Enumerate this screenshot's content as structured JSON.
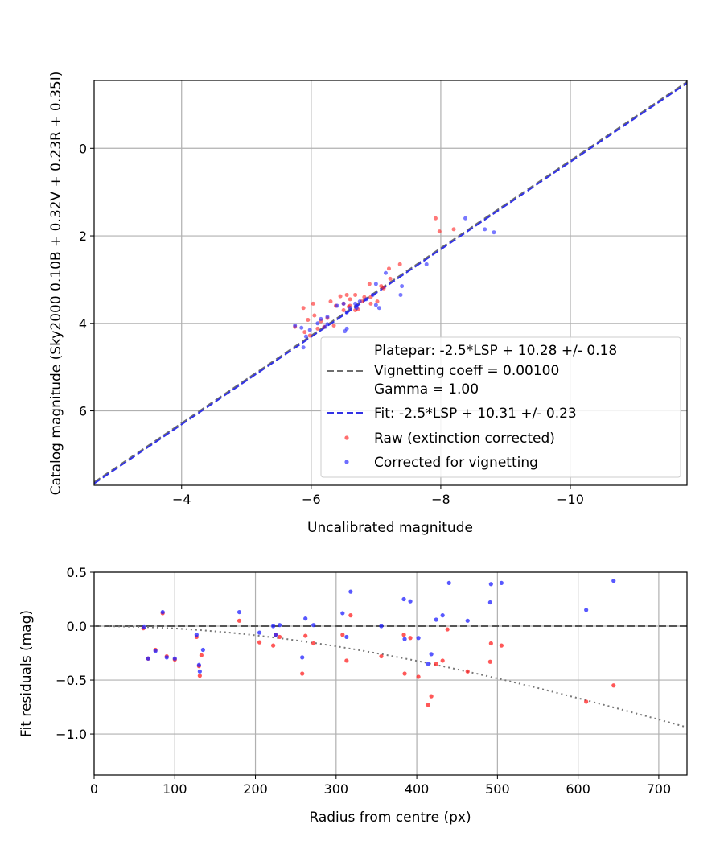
{
  "chart_data": [
    {
      "type": "scatter",
      "xlabel": "Uncalibrated magnitude",
      "ylabel": "Catalog magnitude (Sky2000 0.10B + 0.32V + 0.23R + 0.35I)",
      "xlim": [
        -2.65,
        -11.8
      ],
      "ylim": [
        7.7,
        -1.55
      ],
      "x_inverted": true,
      "y_inverted": true,
      "xticks": [
        -4,
        -6,
        -8,
        -10
      ],
      "xtick_labels": [
        "−4",
        "−6",
        "−8",
        "−10"
      ],
      "yticks": [
        0,
        2,
        4,
        6
      ],
      "ytick_labels": [
        "0",
        "2",
        "4",
        "6"
      ],
      "grid": true,
      "legend_position": "lower-right",
      "legend": [
        {
          "kind": "line",
          "style": "dashed",
          "color": "#6e6e6e",
          "lines": [
            "Platepar: -2.5*LSP + 10.28 +/- 0.18",
            "Vignetting coeff = 0.00100",
            "Gamma = 1.00"
          ]
        },
        {
          "kind": "line",
          "style": "dashed",
          "color": "#3232e6",
          "lines": [
            "Fit: -2.5*LSP + 10.31 +/- 0.23"
          ]
        },
        {
          "kind": "marker",
          "color": "#ff2020",
          "lines": [
            "Raw (extinction corrected)"
          ]
        },
        {
          "kind": "marker",
          "color": "#2020ff",
          "lines": [
            "Corrected for vignetting"
          ]
        }
      ],
      "series": [
        {
          "name": "Platepar: -2.5*LSP + 10.28 +/- 0.18",
          "kind": "line",
          "color": "#6e6e6e",
          "x": [
            -2.65,
            -11.8
          ],
          "y": [
            7.63,
            -1.52
          ]
        },
        {
          "name": "Fit: -2.5*LSP + 10.31 +/- 0.23",
          "kind": "line",
          "color": "#3232e6",
          "x": [
            -2.65,
            -11.8
          ],
          "y": [
            7.66,
            -1.49
          ]
        },
        {
          "name": "Raw (extinction corrected)",
          "kind": "scatter",
          "color": "#ff2020",
          "x": [
            -7.92,
            -8.2,
            -7.98,
            -7.37,
            -7.2,
            -7.22,
            -7.08,
            -7.12,
            -6.9,
            -6.68,
            -6.82,
            -6.6,
            -6.55,
            -6.45,
            -6.5,
            -6.6,
            -6.78,
            -6.68,
            -6.38,
            -6.3,
            -6.03,
            -6.05,
            -5.95,
            -5.88,
            -5.75,
            -5.9,
            -6.1,
            -6.2,
            -6.35,
            -6.5,
            -6.72,
            -7.02,
            -6.92,
            -6.15,
            -5.98,
            -6.25,
            -6.58,
            -6.92
          ],
          "y": [
            1.6,
            1.85,
            1.9,
            2.65,
            2.75,
            2.98,
            3.15,
            3.2,
            3.1,
            3.35,
            3.4,
            3.45,
            3.35,
            3.38,
            3.55,
            3.6,
            3.5,
            3.7,
            3.6,
            3.5,
            3.55,
            3.82,
            3.92,
            3.65,
            4.08,
            4.2,
            4.12,
            4.08,
            4.05,
            3.7,
            3.68,
            3.5,
            3.4,
            3.95,
            4.28,
            3.88,
            3.62,
            3.55
          ]
        },
        {
          "name": "Corrected for vignetting",
          "kind": "scatter",
          "color": "#2020ff",
          "x": [
            -8.38,
            -8.68,
            -8.82,
            -7.78,
            -7.4,
            -7.38,
            -7.15,
            -7.0,
            -6.95,
            -6.85,
            -6.75,
            -6.7,
            -6.68,
            -6.6,
            -6.5,
            -6.55,
            -6.4,
            -6.25,
            -6.15,
            -6.1,
            -5.98,
            -5.92,
            -5.85,
            -5.88,
            -5.75,
            -6.22,
            -6.55,
            -6.52,
            -6.7,
            -7.0,
            -7.05,
            -6.25
          ],
          "y": [
            1.6,
            1.85,
            1.92,
            2.65,
            3.15,
            3.35,
            2.85,
            3.1,
            3.35,
            3.45,
            3.5,
            3.6,
            3.55,
            3.65,
            3.55,
            3.75,
            3.6,
            3.85,
            3.9,
            4.0,
            4.15,
            4.3,
            4.1,
            4.55,
            4.05,
            4.08,
            4.12,
            4.18,
            3.65,
            3.58,
            3.65,
            4.02
          ]
        }
      ]
    },
    {
      "type": "scatter",
      "xlabel": "Radius from centre (px)",
      "ylabel": "Fit residuals (mag)",
      "xlim": [
        0,
        735
      ],
      "ylim": [
        -1.38,
        0.5
      ],
      "xticks": [
        0,
        100,
        200,
        300,
        400,
        500,
        600,
        700
      ],
      "xtick_labels": [
        "0",
        "100",
        "200",
        "300",
        "400",
        "500",
        "600",
        "700"
      ],
      "yticks": [
        0.5,
        0.0,
        -0.5,
        -1.0
      ],
      "ytick_labels": [
        "0.5",
        "0.0",
        "−0.5",
        "−1.0"
      ],
      "grid": true,
      "series": [
        {
          "name": "zero",
          "kind": "line",
          "style": "dashed",
          "color": "#555555",
          "x": [
            0,
            735
          ],
          "y": [
            0,
            0
          ]
        },
        {
          "name": "vignetting model",
          "kind": "curve",
          "style": "dotted",
          "color": "#777777",
          "coeff": 0.001
        },
        {
          "name": "Raw (extinction corrected)",
          "kind": "scatter",
          "color": "#ff2020",
          "x": [
            61,
            67,
            76,
            85,
            90,
            100,
            127,
            130,
            131,
            133,
            180,
            205,
            222,
            225,
            230,
            258,
            262,
            272,
            308,
            313,
            318,
            356,
            384,
            385,
            392,
            402,
            414,
            418,
            424,
            432,
            438,
            463,
            491,
            492,
            505,
            610,
            644
          ],
          "y": [
            -0.02,
            -0.3,
            -0.22,
            0.12,
            -0.28,
            -0.31,
            -0.1,
            -0.37,
            -0.46,
            -0.27,
            0.05,
            -0.15,
            -0.18,
            -0.08,
            -0.1,
            -0.44,
            -0.09,
            -0.16,
            -0.08,
            -0.32,
            0.1,
            -0.28,
            -0.08,
            -0.44,
            -0.11,
            -0.47,
            -0.73,
            -0.65,
            -0.35,
            -0.32,
            -0.03,
            -0.42,
            -0.33,
            -0.16,
            -0.18,
            -0.7,
            -0.55
          ]
        },
        {
          "name": "Corrected for vignetting",
          "kind": "scatter",
          "color": "#2020ff",
          "x": [
            62,
            67,
            76,
            85,
            90,
            100,
            127,
            130,
            131,
            135,
            180,
            205,
            222,
            225,
            230,
            258,
            262,
            272,
            308,
            313,
            318,
            356,
            384,
            385,
            392,
            402,
            414,
            418,
            424,
            432,
            440,
            463,
            491,
            492,
            505,
            610,
            644
          ],
          "y": [
            -0.01,
            -0.3,
            -0.23,
            0.13,
            -0.29,
            -0.3,
            -0.08,
            -0.36,
            -0.42,
            -0.22,
            0.13,
            -0.06,
            0.0,
            -0.08,
            0.01,
            -0.29,
            0.07,
            0.01,
            0.12,
            -0.1,
            0.32,
            0.0,
            0.25,
            -0.12,
            0.23,
            -0.11,
            -0.35,
            -0.26,
            0.06,
            0.1,
            0.4,
            0.05,
            0.22,
            0.39,
            0.4,
            0.15,
            0.42
          ]
        }
      ]
    }
  ]
}
